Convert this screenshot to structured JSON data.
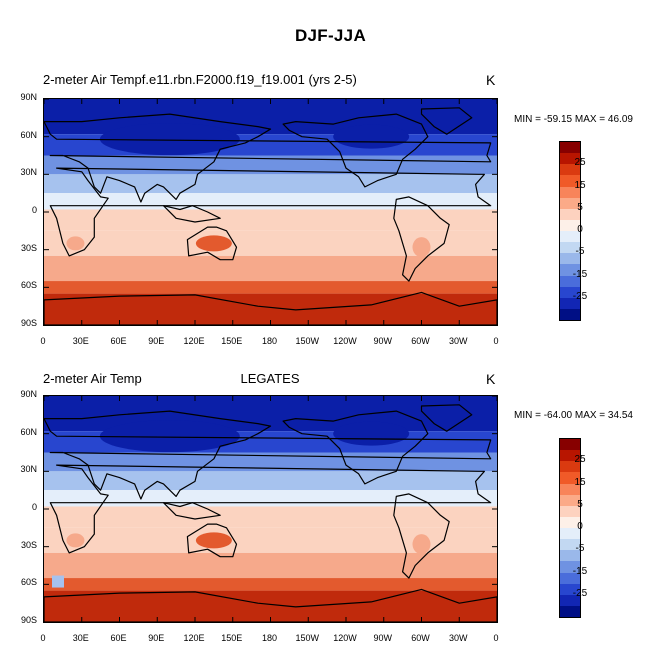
{
  "page_title": "DJF-JJA",
  "panels": [
    {
      "title_left": "2-meter Air Tempf.e11.rbn.F2000.f19_f19.001 (yrs 2-5)",
      "title_center": "",
      "unit": "K",
      "minmax": "MIN = -59.15 MAX =  46.09"
    },
    {
      "title_left": "2-meter Air Temp",
      "title_center": "LEGATES",
      "unit": "K",
      "minmax": "MIN = -64.00 MAX =  34.54"
    }
  ],
  "lat_labels": [
    "90N",
    "60N",
    "30N",
    "0",
    "30S",
    "60S",
    "90S"
  ],
  "lon_labels": [
    "0",
    "30E",
    "60E",
    "90E",
    "120E",
    "150E",
    "180",
    "150W",
    "120W",
    "90W",
    "60W",
    "30W",
    "0"
  ],
  "colorbar_labels": [
    "25",
    "15",
    "5",
    "0",
    "-5",
    "-15",
    "-25"
  ],
  "colorbar_colors": [
    "#870000",
    "#b81500",
    "#da3a10",
    "#f05a28",
    "#f8845a",
    "#fbaa88",
    "#fdd2bf",
    "#fdf0e8",
    "#e4eefa",
    "#c2d8f2",
    "#9ab8ea",
    "#6f92e2",
    "#4a6ddb",
    "#2846cf",
    "#1226b4",
    "#000f85"
  ],
  "colors": {
    "cold_deep": "#0b1fa8",
    "cold": "#2846cf",
    "cool": "#6f92e2",
    "cool_light": "#a6c2ee",
    "near_zero": "#e4eefa",
    "warm_light": "#fbd3c0",
    "warm": "#f6a98b",
    "hot": "#e35a2e",
    "very_hot": "#c02a0c"
  }
}
